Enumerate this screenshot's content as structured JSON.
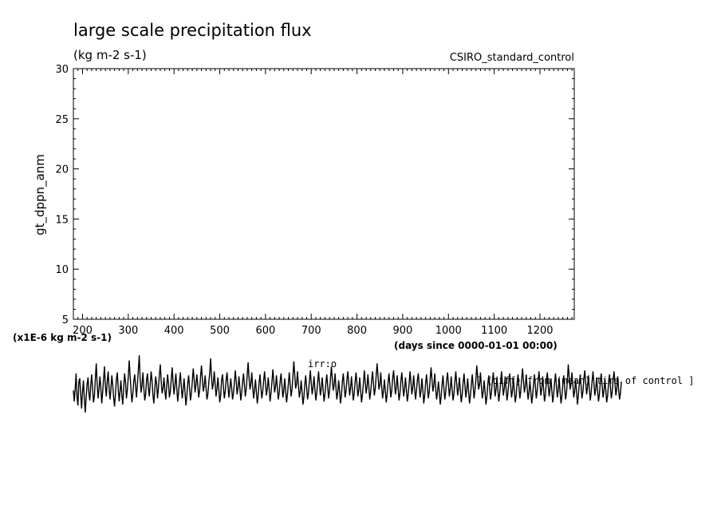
{
  "chart_data": {
    "type": "line",
    "title": "large scale precipitation flux",
    "units": "(kg m-2 s-1)",
    "experiment": "CSIRO_standard_control",
    "ylabel": "gt_dppn_anm",
    "y_scale_label": "(x1E-6 kg m-2 s-1)",
    "xlabel": "(days since 0000-01-01 00:00)",
    "footnote": "[ (diff) from (mean) time of control ]",
    "overlay_label": "irr:o",
    "xlim": [
      180,
      1275
    ],
    "ylim": [
      5,
      30
    ],
    "xticks": [
      200,
      300,
      400,
      500,
      600,
      700,
      800,
      900,
      1000,
      1100,
      1200
    ],
    "yticks": [
      5,
      10,
      15,
      20,
      25,
      30
    ],
    "series": [
      {
        "x_start": 180,
        "x_step": 2,
        "values": [
          -2.1,
          -3.2,
          -1.9,
          -0.4,
          -2.8,
          -3.6,
          -1.2,
          -0.9,
          -2.5,
          -3.9,
          -2.2,
          -1.1,
          -3.0,
          -4.3,
          -2.7,
          -1.5,
          -0.8,
          -2.4,
          -3.1,
          -1.6,
          -0.5,
          -1.9,
          -3.3,
          -2.6,
          -1.0,
          0.6,
          -1.4,
          -2.9,
          -2.0,
          -0.7,
          -1.8,
          -3.4,
          -2.3,
          -0.9,
          0.3,
          -1.6,
          -2.7,
          -1.3,
          -0.2,
          -1.7,
          -3.0,
          -2.1,
          -0.6,
          -1.5,
          -2.8,
          -3.7,
          -2.4,
          -1.0,
          -0.3,
          -1.9,
          -3.2,
          -2.2,
          -1.1,
          -2.6,
          -3.5,
          -1.8,
          -0.4,
          -1.3,
          -2.9,
          -2.0,
          -0.8,
          0.9,
          -0.6,
          -2.1,
          -3.3,
          -2.4,
          -1.2,
          -0.5,
          -1.7,
          -2.8,
          -1.5,
          -0.1,
          1.4,
          -0.9,
          -2.3,
          -1.6,
          -0.3,
          -1.8,
          -3.1,
          -2.5,
          -1.0,
          -0.4,
          -1.9,
          -2.7,
          -1.4,
          -0.2,
          -1.1,
          -2.6,
          -3.4,
          -2.0,
          -0.7,
          -1.5,
          -2.9,
          -1.8,
          -0.6,
          0.5,
          -1.2,
          -2.4,
          -1.9,
          -0.8,
          -2.1,
          -3.0,
          -1.7,
          -0.5,
          -1.4,
          -2.8,
          -2.2,
          -1.0,
          0.2,
          -1.3,
          -2.5,
          -1.6,
          -0.4,
          -1.8,
          -3.2,
          -2.3,
          -1.1,
          -0.3,
          -1.7,
          -2.9,
          -2.0,
          -0.9,
          -2.2,
          -3.6,
          -2.7,
          -1.4,
          -0.6,
          -1.9,
          -3.1,
          -2.4,
          -1.2,
          0.1,
          -1.0,
          -2.3,
          -1.5,
          -0.5,
          -1.6,
          -2.8,
          -2.1,
          -0.8,
          0.4,
          -0.9,
          -2.2,
          -1.7,
          -0.6,
          -1.8,
          -3.0,
          -2.5,
          -1.3,
          -0.4,
          1.1,
          -0.7,
          -2.0,
          -1.4,
          -0.2,
          -1.5,
          -2.7,
          -1.9,
          -0.8,
          -2.0,
          -3.3,
          -2.6,
          -1.1,
          -0.5,
          -1.7,
          -2.9,
          -2.2,
          -1.0,
          -0.3,
          -1.6,
          -2.8,
          -2.0,
          -0.9,
          -1.8,
          -3.0,
          -2.4,
          -1.3,
          -0.1,
          -1.2,
          -2.5,
          -1.8,
          -0.7,
          -1.9,
          -3.1,
          -2.3,
          -1.2,
          -0.4,
          -1.6,
          -2.7,
          -1.9,
          -0.6,
          0.7,
          -0.8,
          -2.0,
          -1.5,
          -0.3,
          -1.7,
          -2.9,
          -2.1,
          -1.0,
          -2.2,
          -3.4,
          -2.6,
          -1.4,
          -0.5,
          -1.8,
          -2.9,
          -2.2,
          -1.1,
          -0.2,
          -1.4,
          -2.6,
          -1.9,
          -0.8,
          -2.0,
          -3.2,
          -2.4,
          -1.3,
          0.0,
          -1.1,
          -2.3,
          -1.7,
          -0.6,
          -1.9,
          -3.0,
          -2.3,
          -1.2,
          -0.4,
          -1.6,
          -2.8,
          -2.1,
          -0.9,
          -2.1,
          -3.3,
          -2.5,
          -1.4,
          -0.3,
          -1.5,
          -2.7,
          -2.0,
          -0.7,
          0.8,
          -0.6,
          -1.9,
          -1.4,
          -0.2,
          -1.6,
          -2.8,
          -2.2,
          -1.1,
          -2.3,
          -3.5,
          -2.7,
          -1.5,
          -0.6,
          -1.8,
          -3.0,
          -2.3,
          -1.2,
          -0.1,
          -1.3,
          -2.5,
          -1.8,
          -0.7,
          -1.9,
          -3.1,
          -2.4,
          -1.3,
          -0.2,
          -1.4,
          -2.6,
          -1.9,
          -0.8,
          -2.0,
          -3.2,
          -2.5,
          -1.4,
          -0.5,
          -1.7,
          -2.9,
          -2.1,
          -1.0,
          0.3,
          -0.9,
          -2.1,
          -1.6,
          -0.4,
          -1.8,
          -3.0,
          -2.3,
          -1.1,
          -2.2,
          -3.4,
          -2.6,
          -1.3,
          -0.4,
          -1.6,
          -2.8,
          -2.2,
          -1.0,
          -0.2,
          -1.4,
          -2.6,
          -1.8,
          -0.7,
          -2.0,
          -3.1,
          -2.4,
          -1.2,
          -0.3,
          -1.5,
          -2.7,
          -2.0,
          -0.8,
          -2.1,
          -3.3,
          -2.5,
          -1.4,
          -0.1,
          -1.2,
          -2.4,
          -1.7,
          -0.5,
          -1.8,
          -3.0,
          -2.2,
          -1.1,
          -0.2,
          -1.4,
          -2.6,
          -1.9,
          -0.6,
          0.6,
          -0.7,
          -2.0,
          -1.5,
          -0.3,
          -1.7,
          -2.9,
          -2.2,
          -1.0,
          -2.1,
          -3.3,
          -2.5,
          -1.3,
          -0.4,
          -1.6,
          -2.8,
          -2.1,
          -0.9,
          -0.1,
          -1.3,
          -2.5,
          -1.8,
          -0.6,
          -1.9,
          -3.1,
          -2.4,
          -1.2,
          -0.3,
          -1.5,
          -2.7,
          -2.0,
          -0.8,
          -2.0,
          -3.2,
          -2.5,
          -1.4,
          -0.2,
          -1.3,
          -2.5,
          -1.8,
          -0.6,
          -1.9,
          -3.0,
          -2.2,
          -1.1,
          -0.4,
          -1.6,
          -2.8,
          -2.1,
          -0.9,
          -2.1,
          -3.4,
          -2.6,
          -1.4,
          -0.5,
          -1.7,
          -2.9,
          -2.2,
          -1.0,
          0.2,
          -1.0,
          -2.2,
          -1.6,
          -0.4,
          -1.8,
          -3.0,
          -2.3,
          -1.2,
          -2.2,
          -3.5,
          -2.7,
          -1.5,
          -0.6,
          -1.8,
          -3.0,
          -2.3,
          -1.1,
          -0.3,
          -1.5,
          -2.7,
          -1.9,
          -0.7,
          -2.0,
          -3.1,
          -2.4,
          -1.3,
          -0.2,
          -1.4,
          -2.6,
          -1.9,
          -0.8,
          -2.1,
          -3.3,
          -2.5,
          -1.4,
          -0.4,
          -1.6,
          -2.8,
          -2.0,
          -0.9,
          -2.2,
          -3.4,
          -2.6,
          -1.5,
          -0.5,
          -1.7,
          -2.9,
          -2.1,
          -1.0,
          0.4,
          -0.8,
          -2.0,
          -1.5,
          -0.3,
          -1.7,
          -2.9,
          -2.2,
          -1.1,
          -2.3,
          -3.5,
          -2.7,
          -1.5,
          -0.6,
          -1.8,
          -3.0,
          -2.3,
          -1.2,
          -0.3,
          -1.5,
          -2.7,
          -2.0,
          -0.8,
          -2.0,
          -3.2,
          -2.4,
          -1.3,
          -0.2,
          -1.4,
          -2.6,
          -1.9,
          -0.7,
          -1.9,
          -3.1,
          -2.4,
          -1.2,
          -0.4,
          -1.6,
          -2.8,
          -2.1,
          -0.9,
          -2.1,
          -3.3,
          -2.6,
          -1.4,
          -0.5,
          -1.7,
          -2.9,
          -2.2,
          -1.0,
          0.1,
          -1.1,
          -2.3,
          -1.7,
          -0.5,
          -1.8,
          -3.0,
          -2.3,
          -1.2,
          -2.2,
          -3.4,
          -2.6,
          -1.4,
          -0.5,
          -1.7,
          -2.9,
          -2.2,
          -1.1,
          -0.2,
          -1.4,
          -2.6,
          -1.9,
          -0.7,
          -2.0,
          -3.2,
          -2.5,
          -1.3,
          -0.3,
          -1.5,
          -2.7,
          -2.0,
          -0.9,
          -2.1,
          -3.3,
          -2.5,
          -1.4,
          -0.4,
          -1.6,
          -2.8,
          -2.1,
          -0.9,
          -2.2,
          -3.4,
          -2.7,
          -1.5,
          -0.6,
          -1.8,
          -3.0,
          -2.3,
          -1.1,
          0.5,
          -0.8,
          -2.0,
          -1.4,
          -0.3,
          -1.6,
          -2.8,
          -2.1,
          -1.0,
          -2.2,
          -3.5,
          -2.6,
          -1.4,
          -0.5,
          -1.7,
          -2.9,
          -2.2,
          -1.0,
          -0.1,
          -1.3,
          -2.5,
          -1.8,
          -0.6,
          -1.9,
          -3.1,
          -2.3,
          -1.2,
          -0.2,
          -1.4,
          -2.6,
          -1.9,
          -0.8,
          -2.0,
          -3.2,
          -2.5,
          -1.3,
          -0.4,
          -1.6,
          -2.8,
          -2.1,
          -1.0,
          -2.1,
          -3.3,
          -2.6,
          -1.4,
          -0.5,
          -1.7,
          -2.9,
          -2.2,
          -1.1,
          -0.2,
          -1.4,
          -2.6,
          -1.9,
          -0.7,
          -2.0,
          -3.0,
          -2.4,
          -1.2
        ]
      }
    ]
  }
}
